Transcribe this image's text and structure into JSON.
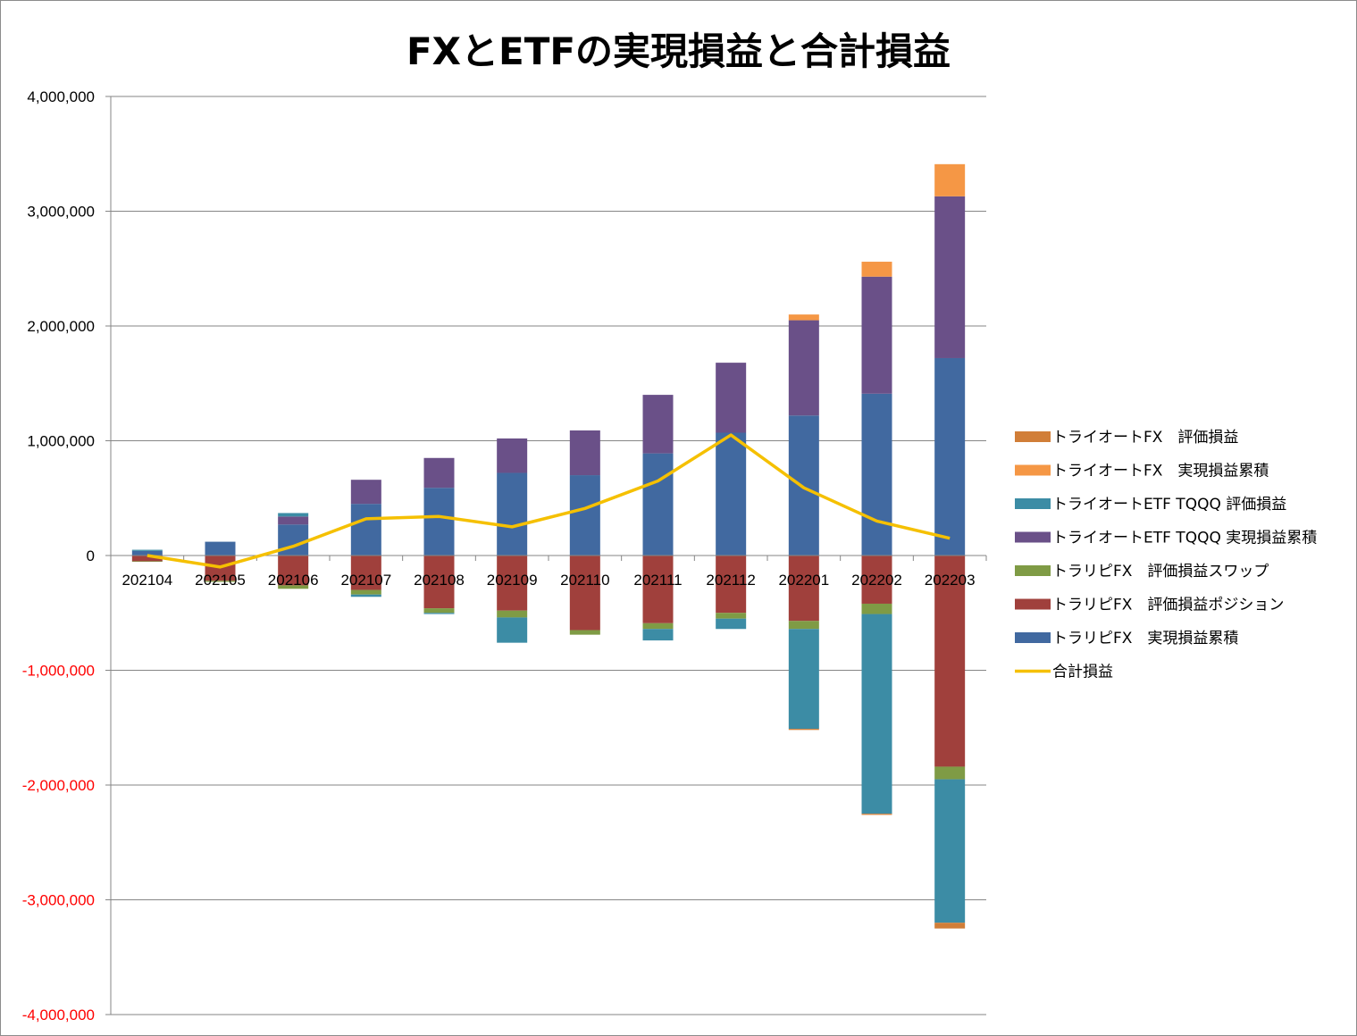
{
  "chart_data": {
    "type": "bar",
    "stacked": true,
    "title": "FXとETFの実現損益と合計損益",
    "xlabel": "",
    "ylabel": "",
    "ylim": [
      -4000000,
      4000000
    ],
    "yticks": [
      {
        "value": 4000000,
        "label": "4,000,000"
      },
      {
        "value": 3000000,
        "label": "3,000,000"
      },
      {
        "value": 2000000,
        "label": "2,000,000"
      },
      {
        "value": 1000000,
        "label": "1,000,000"
      },
      {
        "value": 0,
        "label": "0"
      },
      {
        "value": -1000000,
        "label": "-1,000,000"
      },
      {
        "value": -2000000,
        "label": "-2,000,000"
      },
      {
        "value": -3000000,
        "label": "-3,000,000"
      },
      {
        "value": -4000000,
        "label": "-4,000,000"
      }
    ],
    "negative_tick_color": "#ff0000",
    "grid": true,
    "legend_position": "right",
    "categories": [
      "202104",
      "202105",
      "202106",
      "202107",
      "202108",
      "202109",
      "202110",
      "202111",
      "202112",
      "202201",
      "202202",
      "202203"
    ],
    "series": [
      {
        "name": "トラリピFX　実現損益累積",
        "kind": "bar",
        "color": "#4169a0",
        "values": [
          40000,
          120000,
          270000,
          450000,
          590000,
          720000,
          700000,
          890000,
          1070000,
          1220000,
          1410000,
          1720000
        ]
      },
      {
        "name": "トラリピFX　評価損益ポジション",
        "kind": "bar",
        "color": "#a0403c",
        "values": [
          -50000,
          -220000,
          -260000,
          -300000,
          -460000,
          -480000,
          -650000,
          -590000,
          -500000,
          -570000,
          -420000,
          -1840000
        ]
      },
      {
        "name": "トラリピFX　評価損益スワップ",
        "kind": "bar",
        "color": "#7f9b45",
        "values": [
          -5000,
          -10000,
          -30000,
          -40000,
          -40000,
          -60000,
          -40000,
          -50000,
          -50000,
          -70000,
          -90000,
          -110000
        ]
      },
      {
        "name": "トライオートETF TQQQ 実現損益累積",
        "kind": "bar",
        "color": "#6a5088",
        "values": [
          0,
          0,
          70000,
          210000,
          260000,
          300000,
          390000,
          510000,
          610000,
          830000,
          1020000,
          1410000
        ]
      },
      {
        "name": "トライオートETF TQQQ 評価損益",
        "kind": "bar",
        "color": "#3c8ca5",
        "values": [
          10000,
          0,
          30000,
          -20000,
          -10000,
          -220000,
          0,
          -100000,
          -90000,
          -870000,
          -1740000,
          -1250000
        ]
      },
      {
        "name": "トライオートFX　実現損益累積",
        "kind": "bar",
        "color": "#f59745",
        "values": [
          0,
          0,
          0,
          0,
          0,
          0,
          0,
          0,
          0,
          50000,
          130000,
          280000
        ]
      },
      {
        "name": "トライオートFX　評価損益",
        "kind": "bar",
        "color": "#d17e38",
        "values": [
          0,
          0,
          0,
          0,
          0,
          0,
          0,
          0,
          0,
          -10000,
          -10000,
          -50000
        ]
      },
      {
        "name": "合計損益",
        "kind": "line",
        "color": "#f5c000",
        "values": [
          0,
          -100000,
          80000,
          320000,
          340000,
          250000,
          410000,
          650000,
          1050000,
          590000,
          300000,
          150000
        ]
      }
    ],
    "legend_order": [
      6,
      5,
      4,
      3,
      2,
      1,
      0,
      7
    ]
  }
}
